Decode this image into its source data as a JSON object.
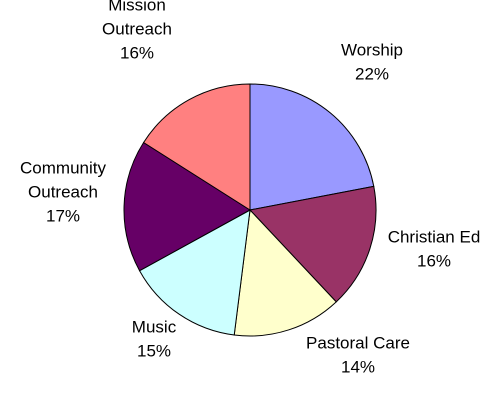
{
  "chart_data": {
    "type": "pie",
    "start_angle_deg": 0,
    "direction": "clockwise",
    "slices": [
      {
        "label_lines": [
          "Worship"
        ],
        "percent_label": "22%",
        "value": 22,
        "color": "#9999ff"
      },
      {
        "label_lines": [
          "Christian Ed"
        ],
        "percent_label": "16%",
        "value": 16,
        "color": "#993366"
      },
      {
        "label_lines": [
          "Pastoral Care"
        ],
        "percent_label": "14%",
        "value": 14,
        "color": "#ffffcc"
      },
      {
        "label_lines": [
          "Music"
        ],
        "percent_label": "15%",
        "value": 15,
        "color": "#ccffff"
      },
      {
        "label_lines": [
          "Community",
          "Outreach"
        ],
        "percent_label": "17%",
        "value": 17,
        "color": "#660066"
      },
      {
        "label_lines": [
          "Mission",
          "Outreach"
        ],
        "percent_label": "16%",
        "value": 16,
        "color": "#ff8080"
      }
    ]
  }
}
